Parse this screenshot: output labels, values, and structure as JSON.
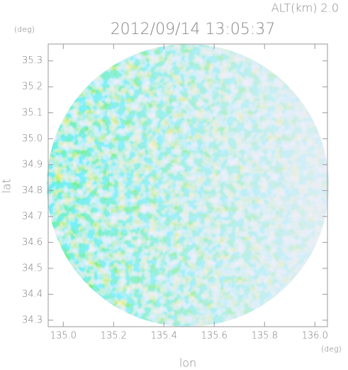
{
  "chart_data": {
    "type": "radar_field",
    "title": "2012/09/14 13:05:37",
    "annotation": "ALT(km)  2.0",
    "x_label": "lon",
    "y_label": "lat",
    "x_unit": "(deg)",
    "y_unit": "(deg)",
    "xlim": [
      134.94,
      136.05
    ],
    "ylim": [
      34.275,
      35.365
    ],
    "xticks": [
      {
        "value": 135.0,
        "label": "135.0"
      },
      135.2,
      135.4,
      135.6,
      135.8,
      {
        "value": 136.0,
        "label": "136.0"
      }
    ],
    "yticks": [
      34.3,
      34.4,
      34.5,
      34.6,
      34.7,
      34.8,
      34.9,
      {
        "value": 35.0,
        "label": "35.0"
      },
      35.1,
      35.2,
      35.3
    ]
  }
}
